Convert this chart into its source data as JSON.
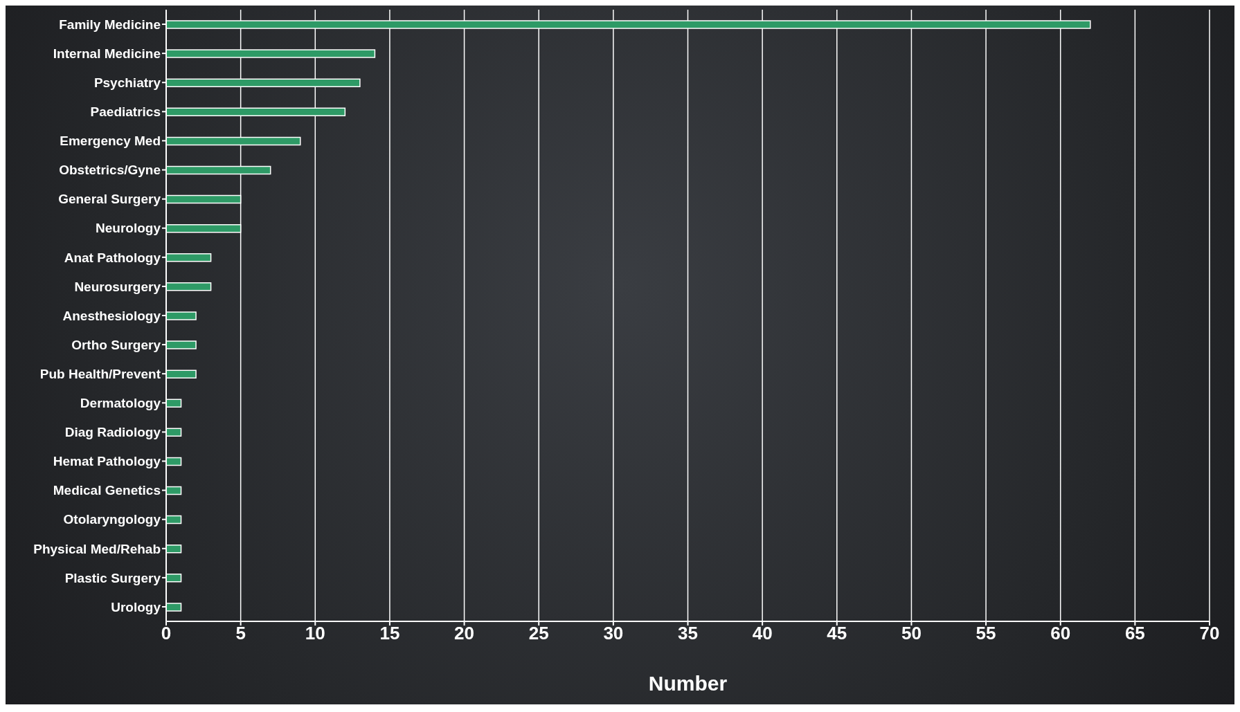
{
  "chart_data": {
    "type": "bar",
    "orientation": "horizontal",
    "xlabel": "Number",
    "categories": [
      "Family Medicine",
      "Internal Medicine",
      "Psychiatry",
      "Paediatrics",
      "Emergency Med",
      "Obstetrics/Gyne",
      "General Surgery",
      "Neurology",
      "Anat Pathology",
      "Neurosurgery",
      "Anesthesiology",
      "Ortho Surgery",
      "Pub Health/Prevent",
      "Dermatology",
      "Diag Radiology",
      "Hemat Pathology",
      "Medical Genetics",
      "Otolaryngology",
      "Physical Med/Rehab",
      "Plastic Surgery",
      "Urology"
    ],
    "values": [
      62,
      14,
      13,
      12,
      9,
      7,
      5,
      5,
      3,
      3,
      2,
      2,
      2,
      1,
      1,
      1,
      1,
      1,
      1,
      1,
      1
    ],
    "color": "#2e9a66",
    "xlim": [
      0,
      70
    ],
    "xticks": [
      0,
      5,
      10,
      15,
      20,
      25,
      30,
      35,
      40,
      45,
      50,
      55,
      60,
      65,
      70
    ],
    "grid": "x"
  }
}
